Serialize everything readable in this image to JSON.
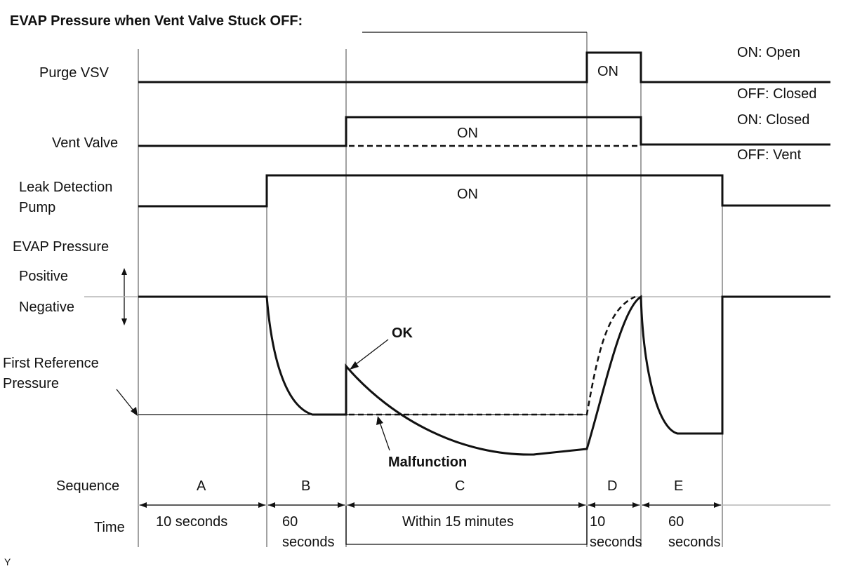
{
  "title": "EVAP Pressure when Vent Valve Stuck OFF:",
  "rows": {
    "purge_vsv": "Purge VSV",
    "vent_valve": "Vent Valve",
    "leak_pump_line1": "Leak Detection",
    "leak_pump_line2": "Pump",
    "evap_pressure": "EVAP Pressure",
    "positive": "Positive",
    "negative": "Negative",
    "first_ref_line1": "First Reference",
    "first_ref_line2": "Pressure",
    "sequence": "Sequence",
    "time": "Time"
  },
  "state_labels": {
    "purge_on": "ON: Open",
    "purge_off": "OFF: Closed",
    "vent_on": "ON: Closed",
    "vent_off": "OFF: Vent"
  },
  "pulse_labels": {
    "purge_pulse": "ON",
    "vent_pulse": "ON",
    "pump_pulse": "ON"
  },
  "annotations": {
    "ok": "OK",
    "malfunction": "Malfunction"
  },
  "sequence": [
    "A",
    "B",
    "C",
    "D",
    "E"
  ],
  "durations": {
    "a": "10 seconds",
    "b_line1": "60",
    "b_line2": "seconds",
    "c": "Within 15 minutes",
    "d_line1": "10",
    "d_line2": "seconds",
    "e_line1": "60",
    "e_line2": "seconds"
  },
  "corner_mark": "Y"
}
